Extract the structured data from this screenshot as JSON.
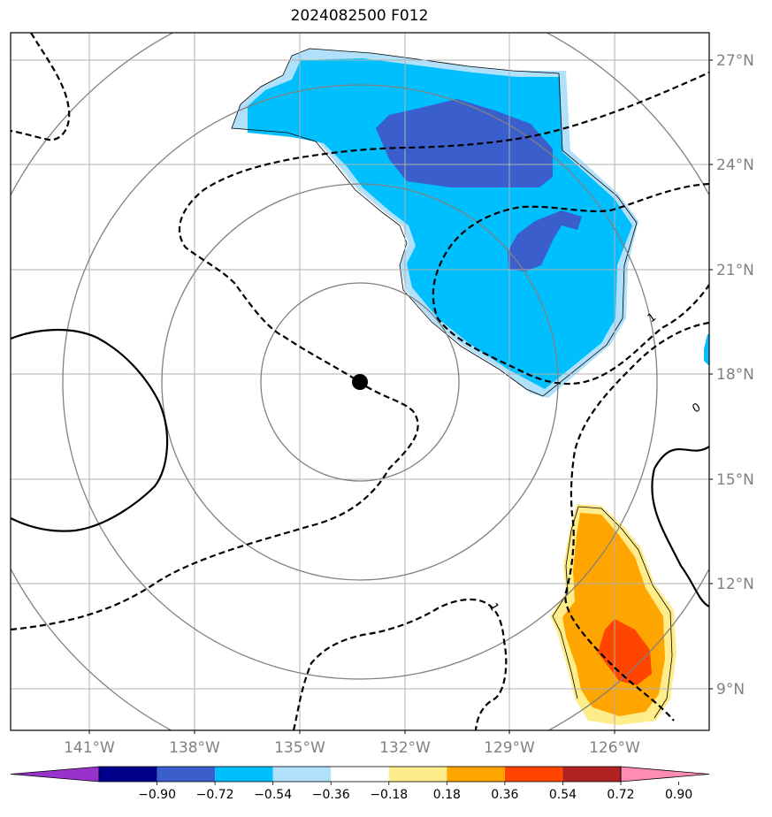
{
  "title": "2024082500 F012",
  "map": {
    "lon_labels": [
      "141°W",
      "138°W",
      "135°W",
      "132°W",
      "129°W",
      "126°W"
    ],
    "lat_labels": [
      "27°N",
      "24°N",
      "21°N",
      "18°N",
      "15°N",
      "12°N",
      "9°N"
    ],
    "lon_range": [
      -143.2,
      -123.2
    ],
    "lat_range": [
      7.8,
      27.8
    ],
    "storm_center": {
      "lon": -133.3,
      "lat": 17.8
    },
    "contour_labels": [
      "1",
      "0",
      "1"
    ]
  },
  "colorbar": {
    "tick_labels": [
      "−0.90",
      "−0.72",
      "−0.54",
      "−0.36",
      "−0.18",
      "0.18",
      "0.36",
      "0.54",
      "0.72",
      "0.90"
    ],
    "colors": [
      "#9932cc",
      "#00008b",
      "#3a5fcd",
      "#00bfff",
      "#b0e0fa",
      "#ffffff",
      "#ffec8b",
      "#ffa500",
      "#ff4500",
      "#b22222",
      "#ff8cb4"
    ]
  }
}
